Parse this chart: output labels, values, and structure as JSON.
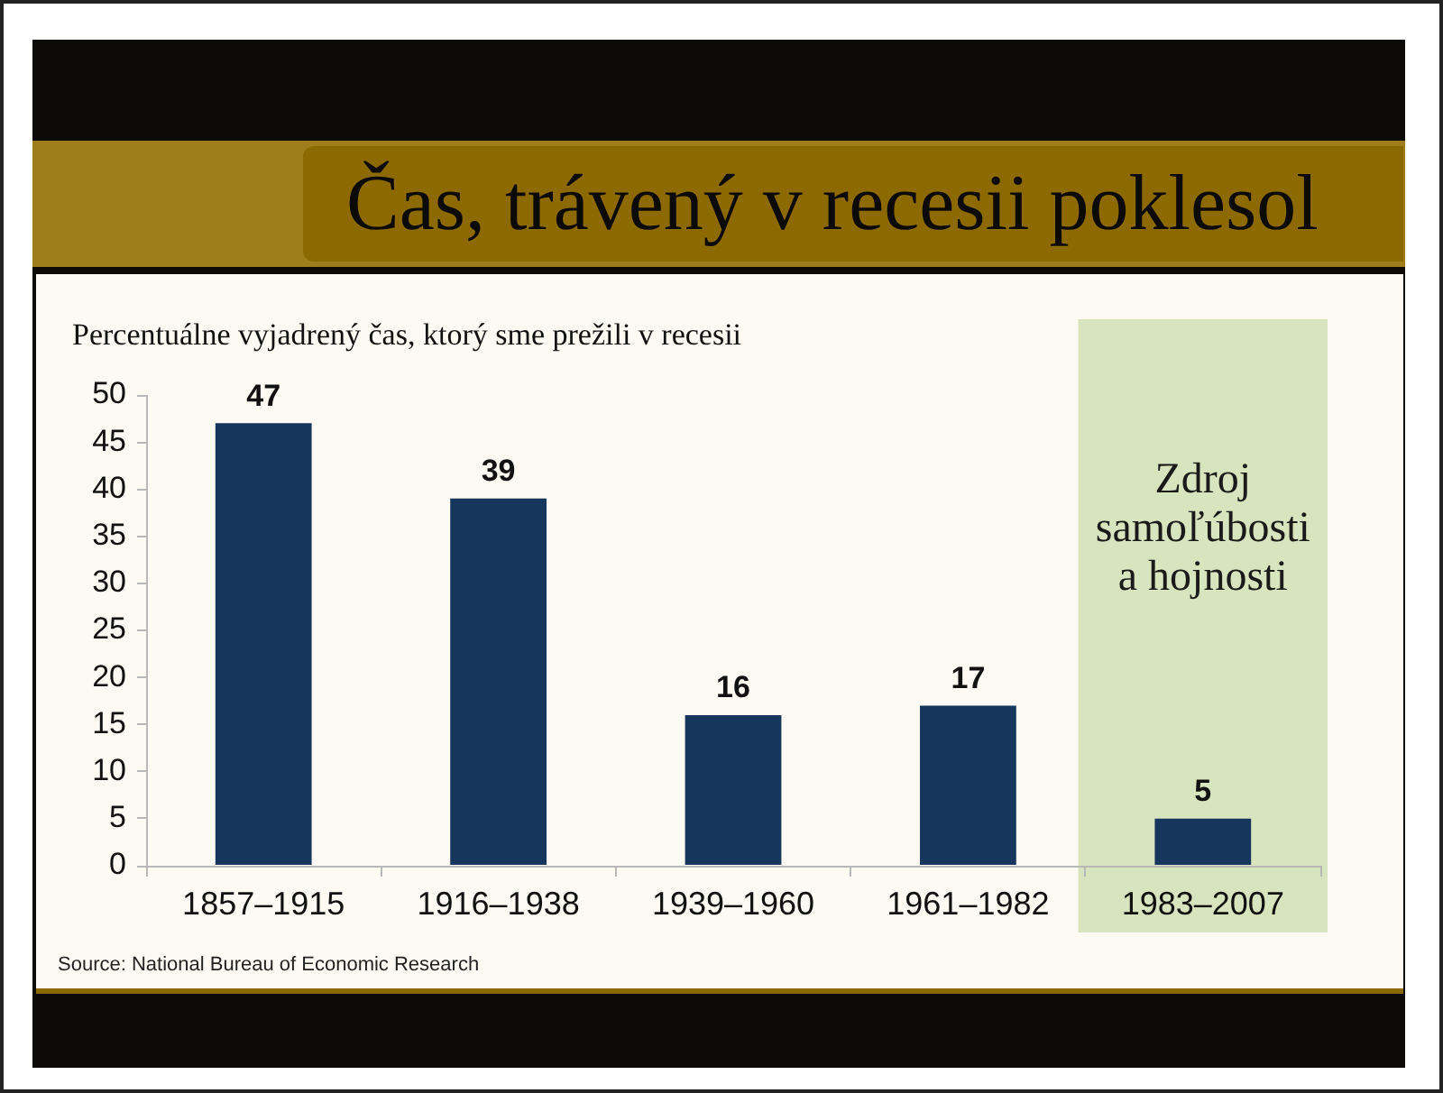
{
  "chart_data": {
    "type": "bar",
    "title": "Čas, trávený v recesii poklesol",
    "subtitle": "Percentuálne vyjadrený čas, ktorý sme prežili v recesii",
    "annotations": [
      "Source: National Bureau of Economic Research"
    ],
    "categories": [
      "1857–1915",
      "1916–1938",
      "1939–1960",
      "1961–1982",
      "1983–2007"
    ],
    "values": [
      47,
      39,
      16,
      17,
      5
    ],
    "color": "#17365d",
    "ylim": [
      0,
      50
    ],
    "yticks": [
      0,
      5,
      10,
      15,
      20,
      25,
      30,
      35,
      40,
      45,
      50
    ],
    "data_labels": true,
    "bands": [
      {
        "axis": "x",
        "from": "1983–2007",
        "to": "1983–2007",
        "label": "Zdroj samoľúbosti a hojnosti",
        "color": "#d7e4bd"
      }
    ]
  }
}
